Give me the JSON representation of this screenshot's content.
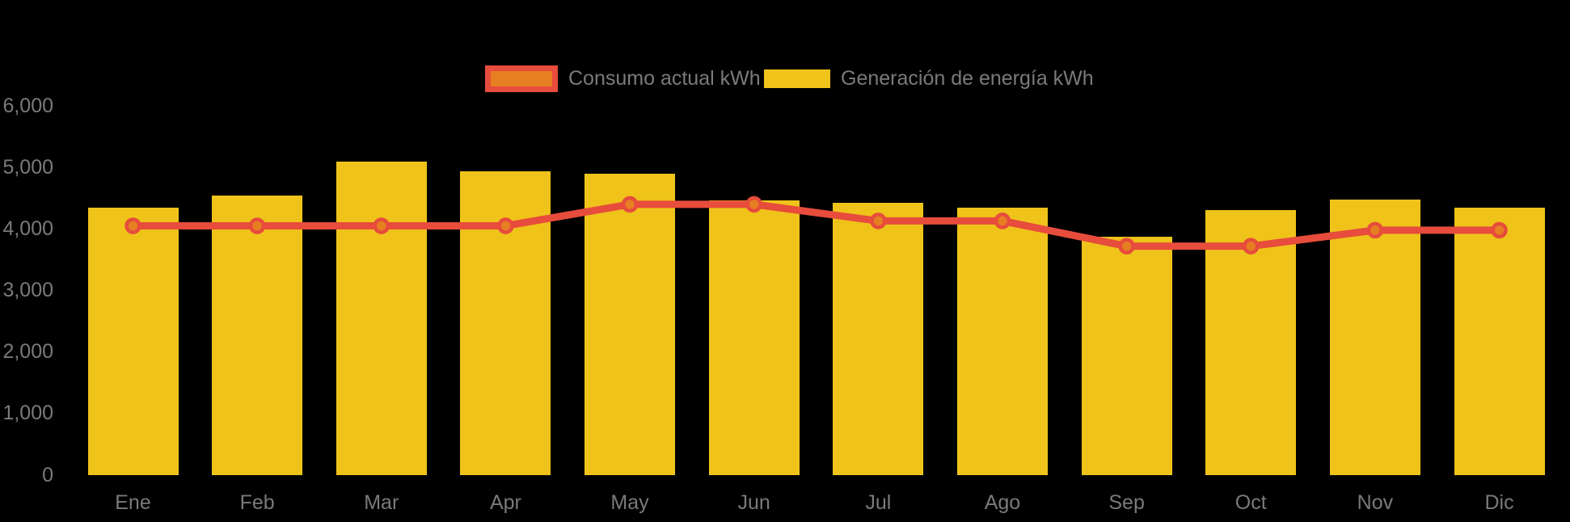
{
  "chart_data": {
    "type": "bar+line",
    "title": "",
    "xlabel": "",
    "ylabel": "",
    "categories": [
      "Ene",
      "Feb",
      "Mar",
      "Apr",
      "May",
      "Jun",
      "Jul",
      "Ago",
      "Sep",
      "Oct",
      "Nov",
      "Dic"
    ],
    "series": [
      {
        "name": "Generación de energía kWh",
        "type": "bar",
        "color": "#EFC31A",
        "values": [
          4350,
          4540,
          5100,
          4940,
          4900,
          4460,
          4420,
          4350,
          3870,
          4310,
          4480,
          4350
        ]
      },
      {
        "name": "Consumo actual kWh",
        "type": "line",
        "color": "#E74C3C",
        "marker_fill": "#E67E22",
        "values": [
          4050,
          4050,
          4050,
          4050,
          4400,
          4400,
          4130,
          4130,
          3720,
          3720,
          3980,
          3980
        ]
      }
    ],
    "ylim": [
      0,
      6000
    ],
    "y_ticks": [
      {
        "value": 6000,
        "label": "6,000"
      },
      {
        "value": 5000,
        "label": "5,000"
      },
      {
        "value": 4000,
        "label": "4,000"
      },
      {
        "value": 3000,
        "label": "3,000"
      },
      {
        "value": 2000,
        "label": "2,000"
      },
      {
        "value": 1000,
        "label": "1,000"
      },
      {
        "value": 0,
        "label": "0"
      }
    ],
    "grid": false,
    "legend_position": "top",
    "legend": [
      {
        "label": "Consumo actual kWh",
        "swatch": "orange-fill-red-border"
      },
      {
        "label": "Generación de energía kWh",
        "swatch": "yellow-fill"
      }
    ],
    "colors": {
      "background": "#000000",
      "bar": "#EFC31A",
      "line": "#E74C3C",
      "marker": "#E67E22",
      "axis_text": "#7A7A7A"
    }
  }
}
